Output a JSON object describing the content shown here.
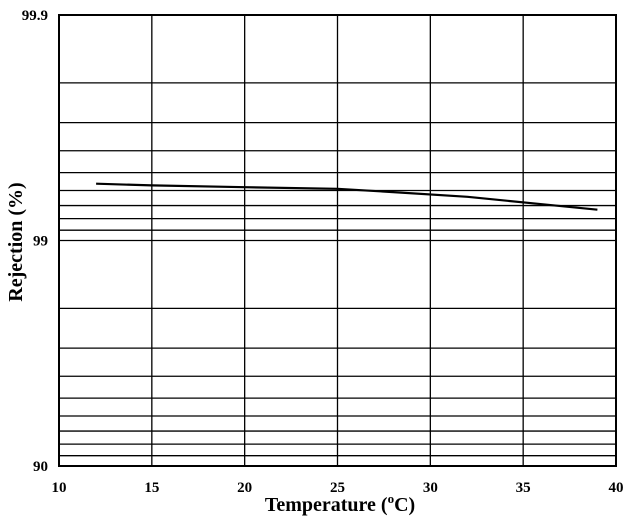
{
  "chart_data": {
    "type": "line",
    "title": "",
    "xlabel": "Temperature (",
    "xlabel_sup": "o",
    "xlabel_tail": "C)",
    "ylabel": "Rejection (%)",
    "x_scale": "linear",
    "y_scale": "log10(100 - rejection)",
    "xlim": [
      10,
      40
    ],
    "ylim": [
      90,
      99.9
    ],
    "x_ticks": [
      10,
      15,
      20,
      25,
      30,
      35,
      40
    ],
    "x_tick_labels": [
      "10",
      "15",
      "20",
      "25",
      "30",
      "35",
      "40"
    ],
    "y_tick_labels": [
      {
        "value": 90,
        "label": "90"
      },
      {
        "value": 99,
        "label": "99"
      },
      {
        "value": 99.9,
        "label": "99.9"
      }
    ],
    "y_minor_gridlines": [
      91,
      92,
      93,
      94,
      95,
      96,
      97,
      98,
      99.1,
      99.2,
      99.3,
      99.4,
      99.5,
      99.6,
      99.7,
      99.8
    ],
    "grid": true,
    "series": [
      {
        "x": [
          12,
          15,
          20,
          25,
          28,
          32,
          36,
          39
        ],
        "values": [
          99.44,
          99.43,
          99.42,
          99.41,
          99.39,
          99.36,
          99.31,
          99.27
        ]
      }
    ]
  }
}
